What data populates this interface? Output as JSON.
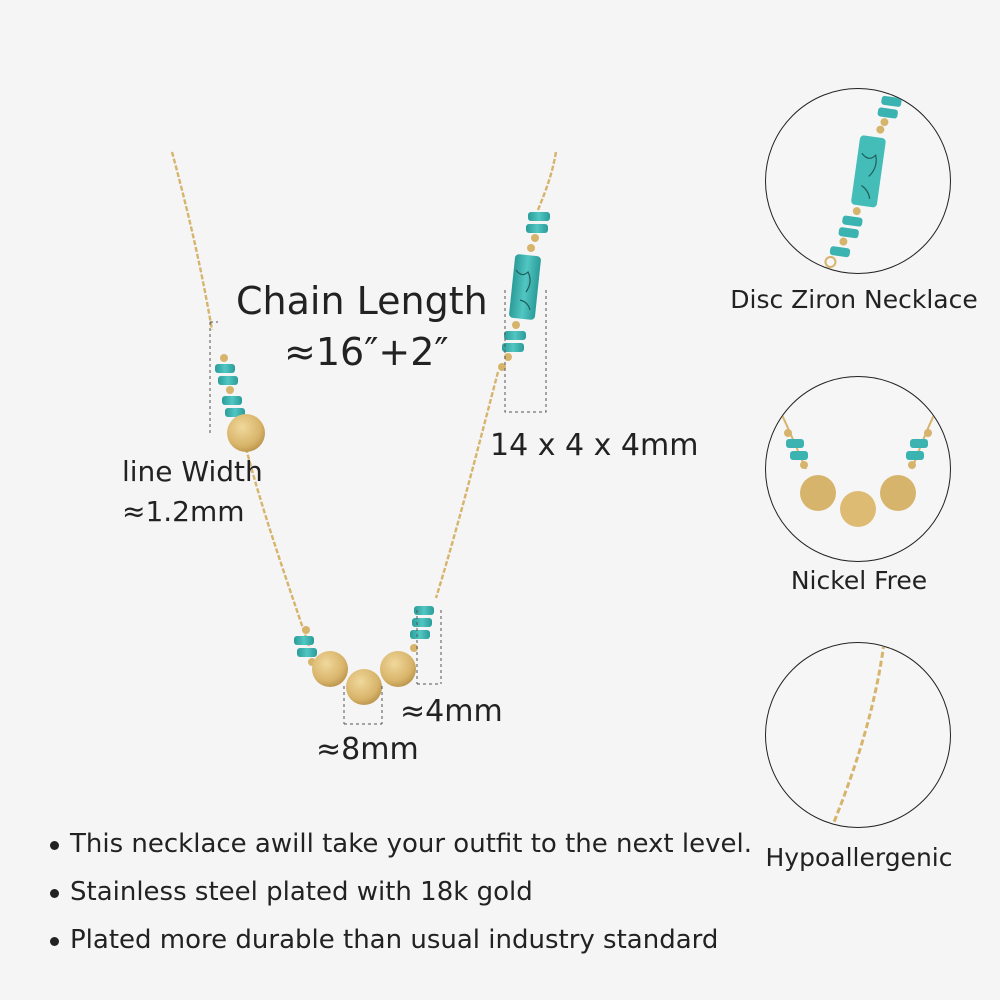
{
  "colors": {
    "background": "#f5f5f6",
    "gold": "#d7b46c",
    "gold_dark": "#b8914a",
    "turquoise": "#3bb3b0",
    "turquoise_dark": "#1f7d7a",
    "text": "#222222"
  },
  "main_labels": {
    "chain_length_title": "Chain Length",
    "chain_length_value": "≈16″+2″",
    "line_width_title": "line Width",
    "line_width_value": "≈1.2mm",
    "bead_size": "14 x 4 x 4mm",
    "bead_width": "≈4mm",
    "disc_size": "≈8mm"
  },
  "feature_circles": [
    {
      "caption": "Disc Ziron Necklace",
      "icon": "turquoise-bead-strand-closeup"
    },
    {
      "caption": "Nickel Free",
      "icon": "gold-disc-cluster-closeup"
    },
    {
      "caption": "Hypoallergenic",
      "icon": "gold-chain-closeup"
    }
  ],
  "bullets": [
    "This necklace awill take your outfit to the next level.",
    "Stainless steel plated with 18k gold",
    "Plated more durable than usual industry standard"
  ]
}
